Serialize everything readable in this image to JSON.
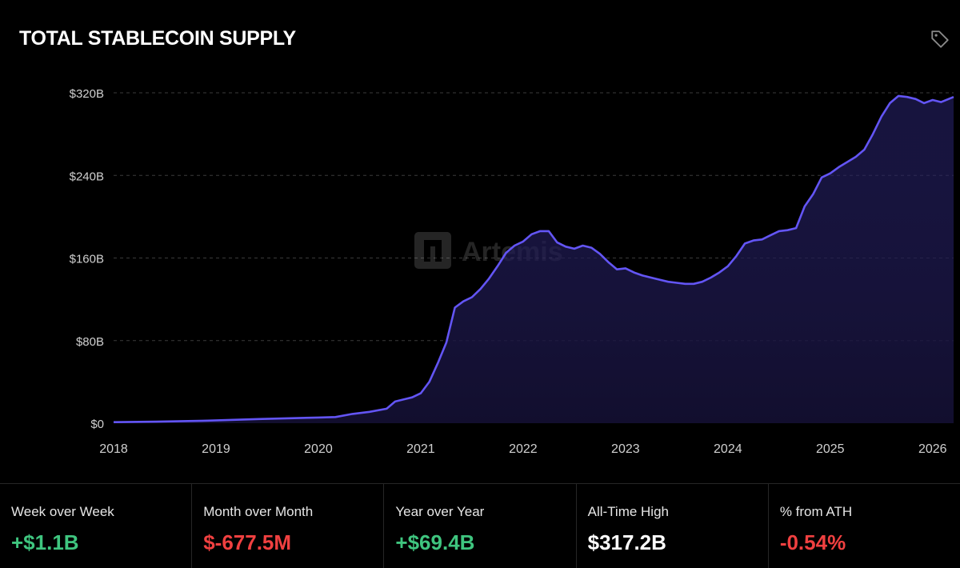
{
  "header": {
    "title": "TOTAL STABLECOIN SUPPLY"
  },
  "watermark": "Artemis",
  "icons": {
    "tag": "tag-icon",
    "watermark_logo": "artemis-logo-icon"
  },
  "colors": {
    "line": "#6355f5",
    "positive": "#3fc57f",
    "negative": "#f04040",
    "neutral": "#ffffff",
    "background": "#000000"
  },
  "chart_data": {
    "type": "area",
    "title": "TOTAL STABLECOIN SUPPLY",
    "xlabel": "",
    "ylabel": "",
    "x_ticks": [
      "2018",
      "2019",
      "2020",
      "2021",
      "2022",
      "2023",
      "2024",
      "2025",
      "2026"
    ],
    "y_ticks": [
      "$0",
      "$80B",
      "$160B",
      "$240B",
      "$320B"
    ],
    "ylim": [
      0,
      320
    ],
    "y_unit": "billion USD",
    "xlim": [
      "2018-01-01",
      "2026-03-15"
    ],
    "grid": "horizontal-dashed",
    "series": [
      {
        "points": [
          [
            "2018-01-01",
            1.0
          ],
          [
            "2018-06-01",
            1.5
          ],
          [
            "2018-12-01",
            2.5
          ],
          [
            "2019-06-01",
            4
          ],
          [
            "2020-01-01",
            5.5
          ],
          [
            "2020-03-01",
            6
          ],
          [
            "2020-05-01",
            9
          ],
          [
            "2020-07-01",
            11
          ],
          [
            "2020-09-01",
            14
          ],
          [
            "2020-10-01",
            21
          ],
          [
            "2020-12-01",
            25
          ],
          [
            "2021-01-01",
            29
          ],
          [
            "2021-02-01",
            40
          ],
          [
            "2021-03-01",
            58
          ],
          [
            "2021-04-01",
            78
          ],
          [
            "2021-05-01",
            112
          ],
          [
            "2021-06-01",
            118
          ],
          [
            "2021-07-01",
            122
          ],
          [
            "2021-08-01",
            130
          ],
          [
            "2021-09-01",
            140
          ],
          [
            "2021-10-01",
            152
          ],
          [
            "2021-11-01",
            165
          ],
          [
            "2021-12-01",
            172
          ],
          [
            "2022-01-01",
            176
          ],
          [
            "2022-02-01",
            183
          ],
          [
            "2022-03-01",
            186
          ],
          [
            "2022-04-01",
            186
          ],
          [
            "2022-05-01",
            175
          ],
          [
            "2022-06-01",
            171
          ],
          [
            "2022-07-01",
            169
          ],
          [
            "2022-08-01",
            172
          ],
          [
            "2022-09-01",
            170
          ],
          [
            "2022-10-01",
            164
          ],
          [
            "2022-11-01",
            156
          ],
          [
            "2022-12-01",
            149
          ],
          [
            "2023-01-01",
            150
          ],
          [
            "2023-02-01",
            146
          ],
          [
            "2023-03-01",
            143
          ],
          [
            "2023-04-01",
            141
          ],
          [
            "2023-05-01",
            139
          ],
          [
            "2023-06-01",
            137
          ],
          [
            "2023-07-01",
            136
          ],
          [
            "2023-08-01",
            135
          ],
          [
            "2023-09-01",
            135
          ],
          [
            "2023-10-01",
            137
          ],
          [
            "2023-11-01",
            141
          ],
          [
            "2023-12-01",
            146
          ],
          [
            "2024-01-01",
            152
          ],
          [
            "2024-02-01",
            162
          ],
          [
            "2024-03-01",
            174
          ],
          [
            "2024-04-01",
            177
          ],
          [
            "2024-05-01",
            178
          ],
          [
            "2024-06-01",
            182
          ],
          [
            "2024-07-01",
            186
          ],
          [
            "2024-08-01",
            187
          ],
          [
            "2024-09-01",
            189
          ],
          [
            "2024-10-01",
            210
          ],
          [
            "2024-11-01",
            222
          ],
          [
            "2024-12-01",
            238
          ],
          [
            "2025-01-01",
            242
          ],
          [
            "2025-02-01",
            248
          ],
          [
            "2025-03-01",
            253
          ],
          [
            "2025-04-01",
            258
          ],
          [
            "2025-05-01",
            265
          ],
          [
            "2025-06-01",
            280
          ],
          [
            "2025-07-01",
            297
          ],
          [
            "2025-08-01",
            310
          ],
          [
            "2025-09-01",
            317
          ],
          [
            "2025-10-01",
            316
          ],
          [
            "2025-11-01",
            314
          ],
          [
            "2025-12-01",
            310
          ],
          [
            "2026-01-01",
            313
          ],
          [
            "2026-02-01",
            311
          ],
          [
            "2026-03-15",
            316
          ]
        ]
      }
    ]
  },
  "stats": [
    {
      "label": "Week over Week",
      "value": "+$1.1B",
      "tone": "positive"
    },
    {
      "label": "Month over Month",
      "value": "$-677.5M",
      "tone": "negative"
    },
    {
      "label": "Year over Year",
      "value": "+$69.4B",
      "tone": "positive"
    },
    {
      "label": "All-Time High",
      "value": "$317.2B",
      "tone": "neutral"
    },
    {
      "label": "% from ATH",
      "value": "-0.54%",
      "tone": "negative"
    }
  ]
}
